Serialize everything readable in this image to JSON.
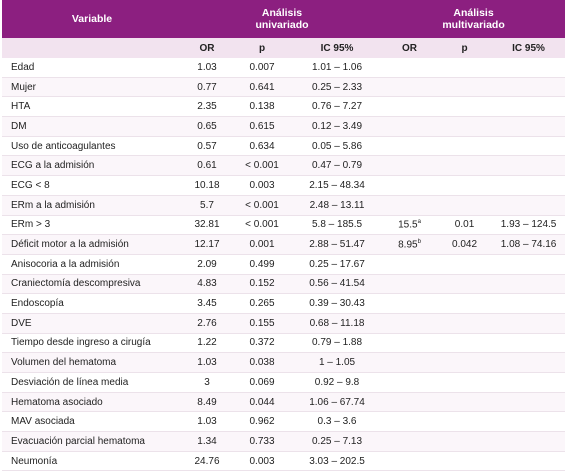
{
  "table": {
    "header": {
      "variable": "Variable",
      "univariate": "Análisis univariado",
      "multivariate": "Análisis multivariado"
    },
    "subheader": [
      "OR",
      "p",
      "IC 95%",
      "OR",
      "p",
      "IC 95%"
    ],
    "rows": [
      {
        "variable": "Edad",
        "uni": [
          "1.03",
          "0.007",
          "1.01 – 1.06"
        ]
      },
      {
        "variable": "Mujer",
        "uni": [
          "0.77",
          "0.641",
          "0.25 – 2.33"
        ]
      },
      {
        "variable": "HTA",
        "uni": [
          "2.35",
          "0.138",
          "0.76 – 7.27"
        ]
      },
      {
        "variable": "DM",
        "uni": [
          "0.65",
          "0.615",
          "0.12 – 3.49"
        ]
      },
      {
        "variable": "Uso de anticoagulantes",
        "uni": [
          "0.57",
          "0.634",
          "0.05 – 5.86"
        ]
      },
      {
        "variable": "ECG a la admisión",
        "uni": [
          "0.61",
          "< 0.001",
          "0.47 – 0.79"
        ]
      },
      {
        "variable": "ECG < 8",
        "uni": [
          "10.18",
          "0.003",
          "2.15 – 48.34"
        ]
      },
      {
        "variable": "ERm a la admisión",
        "uni": [
          "5.7",
          "< 0.001",
          "2.48 – 13.11"
        ]
      },
      {
        "variable": "ERm > 3",
        "uni": [
          "32.81",
          "< 0.001",
          "5.8 – 185.5"
        ],
        "multi": [
          {
            "text": "15.5",
            "sup": "a"
          },
          "0.01",
          "1.93 – 124.5"
        ]
      },
      {
        "variable": "Déficit motor a la admisión",
        "uni": [
          "12.17",
          "0.001",
          "2.88 – 51.47"
        ],
        "multi": [
          {
            "text": "8.95",
            "sup": "b"
          },
          "0.042",
          "1.08 – 74.16"
        ]
      },
      {
        "variable": "Anisocoria a la admisión",
        "uni": [
          "2.09",
          "0.499",
          "0.25 – 17.67"
        ]
      },
      {
        "variable": "Craniectomía descompresiva",
        "uni": [
          "4.83",
          "0.152",
          "0.56 – 41.54"
        ]
      },
      {
        "variable": "Endoscopía",
        "uni": [
          "3.45",
          "0.265",
          "0.39 – 30.43"
        ]
      },
      {
        "variable": "DVE",
        "uni": [
          "2.76",
          "0.155",
          "0.68 – 11.18"
        ]
      },
      {
        "variable": "Tiempo desde ingreso a cirugía",
        "uni": [
          "1.22",
          "0.372",
          "0.79 – 1.88"
        ]
      },
      {
        "variable": "Volumen del hematoma",
        "uni": [
          "1.03",
          "0.038",
          "1 – 1.05"
        ]
      },
      {
        "variable": "Desviación de línea media",
        "uni": [
          "3",
          "0.069",
          "0.92 – 9.8"
        ]
      },
      {
        "variable": "Hematoma asociado",
        "uni": [
          "8.49",
          "0.044",
          "1.06 – 67.74"
        ]
      },
      {
        "variable": "MAV asociada",
        "uni": [
          "1.03",
          "0.962",
          "0.3 – 3.6"
        ]
      },
      {
        "variable": "Evacuación parcial hematoma",
        "uni": [
          "1.34",
          "0.733",
          "0.25 – 7.13"
        ]
      },
      {
        "variable": "Neumonía",
        "uni": [
          "24.76",
          "0.003",
          "3.03 – 202.5"
        ]
      }
    ]
  }
}
